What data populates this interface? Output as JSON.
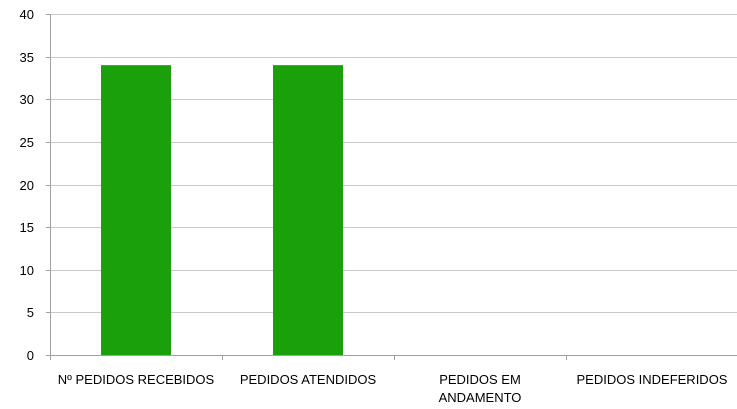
{
  "chart_data": {
    "type": "bar",
    "categories": [
      [
        "Nº PEDIDOS RECEBIDOS"
      ],
      [
        "PEDIDOS ATENDIDOS"
      ],
      [
        "PEDIDOS EM",
        "ANDAMENTO"
      ],
      [
        "PEDIDOS INDEFERIDOS"
      ]
    ],
    "values": [
      34,
      34,
      0,
      0
    ],
    "ylim": [
      0,
      40
    ],
    "yticks": [
      0,
      5,
      10,
      15,
      20,
      25,
      30,
      35,
      40
    ],
    "grid": true,
    "legend": "none",
    "bar_color": "#1aa00a",
    "grid_color": "#c8c8c8",
    "axis_color": "#a0a0a0"
  }
}
